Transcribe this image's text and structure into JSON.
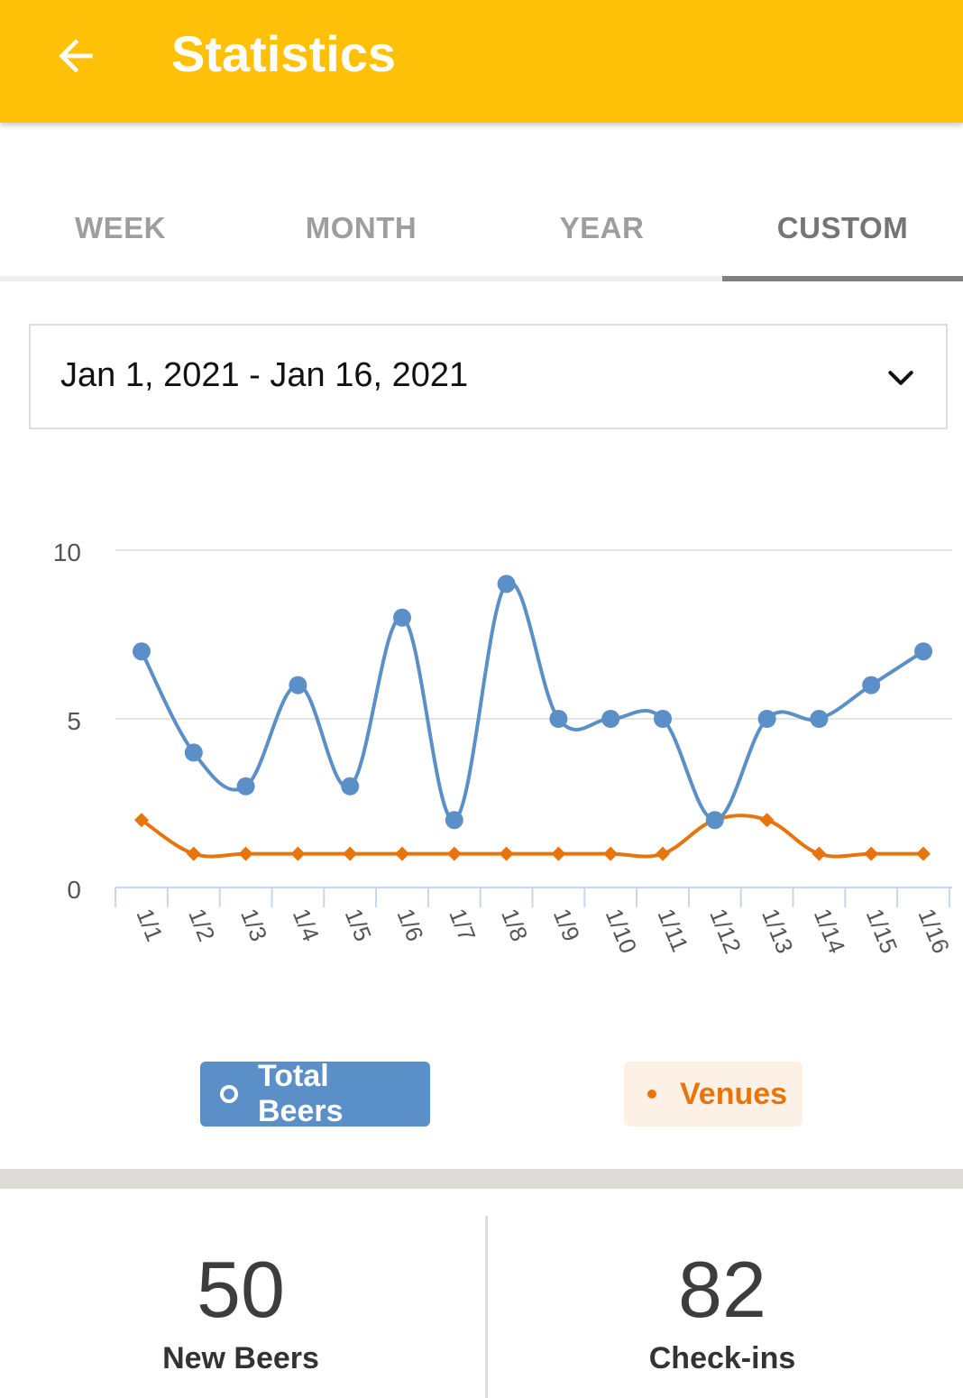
{
  "appbar": {
    "title": "Statistics",
    "back_icon": "arrow-left-icon",
    "color": "#FFC107"
  },
  "tabs": [
    {
      "label": "WEEK",
      "active": false
    },
    {
      "label": "MONTH",
      "active": false
    },
    {
      "label": "YEAR",
      "active": false
    },
    {
      "label": "CUSTOM",
      "active": true
    }
  ],
  "date_range": {
    "value": "Jan 1, 2021 - Jan 16, 2021",
    "icon": "chevron-down-icon"
  },
  "chart_data": {
    "type": "line",
    "categories": [
      "1/1",
      "1/2",
      "1/3",
      "1/4",
      "1/5",
      "1/6",
      "1/7",
      "1/8",
      "1/9",
      "1/10",
      "1/11",
      "1/12",
      "1/13",
      "1/14",
      "1/15",
      "1/16"
    ],
    "series": [
      {
        "name": "Total Beers",
        "color": "#5B8FC7",
        "marker": "circle",
        "values": [
          7,
          4,
          3,
          6,
          3,
          8,
          2,
          9,
          5,
          5,
          5,
          2,
          5,
          5,
          6,
          7
        ]
      },
      {
        "name": "Venues",
        "color": "#E8740C",
        "marker": "diamond",
        "values": [
          2,
          1,
          1,
          1,
          1,
          1,
          1,
          1,
          1,
          1,
          1,
          2,
          2,
          1,
          1,
          1
        ]
      }
    ],
    "yticks": [
      "0",
      "5",
      "10"
    ],
    "ylim": [
      0,
      10
    ],
    "grid": true,
    "legend": "bottom"
  },
  "stats": {
    "new_beers": {
      "value": "50",
      "label": "New Beers"
    },
    "checkins": {
      "value": "82",
      "label": "Check-ins"
    }
  }
}
